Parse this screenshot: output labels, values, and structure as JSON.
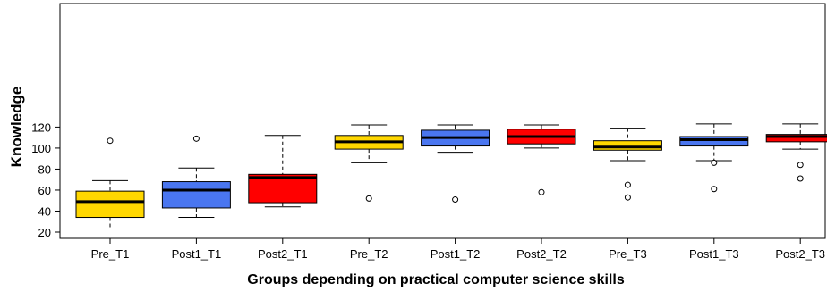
{
  "chart_data": {
    "type": "boxplot",
    "title": "",
    "xlabel": "Groups depending on practical computer science skills",
    "ylabel": "Knowledge",
    "ylim": [
      18,
      126
    ],
    "yticks": [
      20,
      40,
      60,
      80,
      100,
      120
    ],
    "grid": false,
    "legend": "none",
    "categories": [
      "Pre_T1",
      "Post1_T1",
      "Post2_T1",
      "Pre_T2",
      "Post1_T2",
      "Post2_T2",
      "Pre_T3",
      "Post1_T3",
      "Post2_T3"
    ],
    "colors": [
      "#FFD700",
      "#4A76F0",
      "#FF0000",
      "#FFD700",
      "#4A76F0",
      "#FF0000",
      "#FFD700",
      "#4A76F0",
      "#FF0000"
    ],
    "boxes": [
      {
        "min": 23,
        "q1": 34,
        "median": 49,
        "q3": 59,
        "max": 69,
        "outliers": [
          107
        ]
      },
      {
        "min": 34,
        "q1": 43,
        "median": 60,
        "q3": 68,
        "max": 81,
        "outliers": [
          109
        ]
      },
      {
        "min": 44,
        "q1": 48,
        "median": 72,
        "q3": 75,
        "max": 112,
        "outliers": []
      },
      {
        "min": 86,
        "q1": 99,
        "median": 106,
        "q3": 112,
        "max": 122,
        "outliers": [
          52
        ]
      },
      {
        "min": 96,
        "q1": 102,
        "median": 110,
        "q3": 117,
        "max": 122,
        "outliers": [
          51
        ]
      },
      {
        "min": 100,
        "q1": 104,
        "median": 111,
        "q3": 118,
        "max": 122,
        "outliers": [
          58
        ]
      },
      {
        "min": 88,
        "q1": 98,
        "median": 101,
        "q3": 107,
        "max": 119,
        "outliers": [
          65,
          53
        ]
      },
      {
        "min": 88,
        "q1": 102,
        "median": 108,
        "q3": 111,
        "max": 123,
        "outliers": [
          86,
          61
        ]
      },
      {
        "min": 99,
        "q1": 106,
        "median": 111,
        "q3": 113,
        "max": 123,
        "outliers": [
          84,
          71
        ]
      }
    ]
  }
}
